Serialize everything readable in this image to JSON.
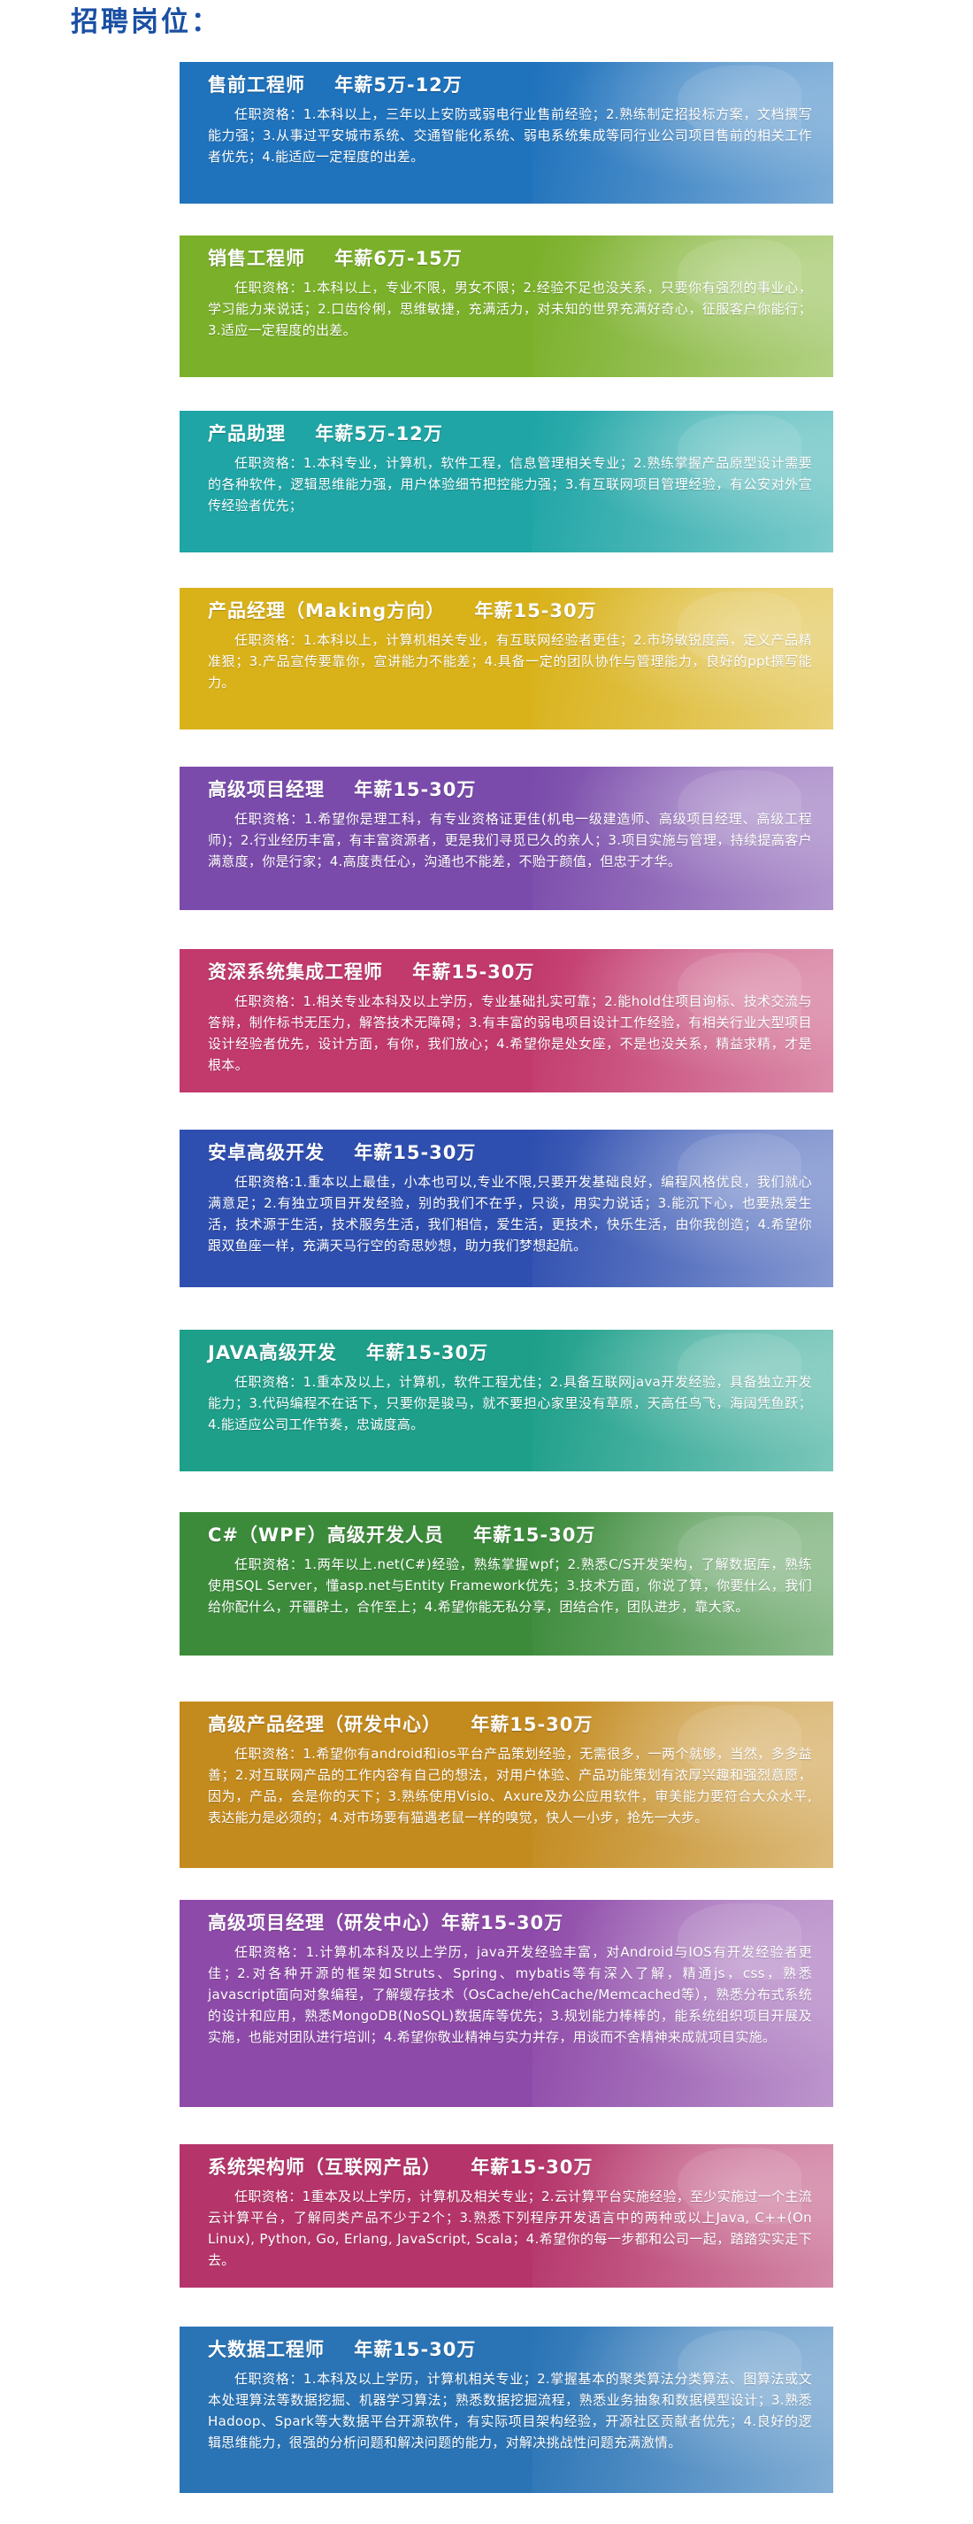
{
  "heading": "招聘岗位：",
  "jobs": [
    {
      "title": "售前工程师    年薪5万-12万",
      "desc": "任职资格：1.本科以上，三年以上安防或弱电行业售前经验；2.熟练制定招投标方案，文档撰写能力强；3.从事过平安城市系统、交通智能化系统、弱电系统集成等同行业公司项目售前的相关工作者优先；4.能适应一定程度的出差。",
      "color": "#1f72bc"
    },
    {
      "title": "销售工程师    年薪6万-15万",
      "desc": "任职资格：1.本科以上，专业不限，男女不限；2.经验不足也没关系，只要你有强烈的事业心，学习能力来说话；2.口齿伶俐，思维敏捷，充满活力，对未知的世界充满好奇心，征服客户你能行；3.适应一定程度的出差。",
      "color": "#7bb02a"
    },
    {
      "title": "产品助理    年薪5万-12万",
      "desc": "任职资格：1.本科专业，计算机，软件工程，信息管理相关专业；2.熟练掌握产品原型设计需要的各种软件，逻辑思维能力强，用户体验细节把控能力强；3.有互联网项目管理经验，有公安对外宣传经验者优先；",
      "color": "#1fa5a6"
    },
    {
      "title": "产品经理（Making方向）    年薪15-30万",
      "desc": "任职资格：1.本科以上，计算机相关专业，有互联网经验者更佳；2.市场敏锐度高，定义产品精准狠；3.产品宣传要靠你，宣讲能力不能差；4.具备一定的团队协作与管理能力，良好的ppt撰写能力。",
      "color": "#d9b21a"
    },
    {
      "title": "高级项目经理    年薪15-30万",
      "desc": "任职资格：1.希望你是理工科，有专业资格证更佳(机电一级建造师、高级项目经理、高级工程师)；2.行业经历丰富，有丰富资源者，更是我们寻觅已久的亲人；3.项目实施与管理，持续提高客户满意度，你是行家；4.高度责任心，沟通也不能差，不贻于颜值，但忠于才华。",
      "color": "#7a4bab"
    },
    {
      "title": "资深系统集成工程师    年薪15-30万",
      "desc": "任职资格：1.相关专业本科及以上学历，专业基础扎实可靠；2.能hold住项目询标、技术交流与答辩，制作标书无压力，解答技术无障碍；3.有丰富的弱电项目设计工作经验，有相关行业大型项目设计经验者优先，设计方面，有你，我们放心；4.希望你是处女座，不是也没关系，精益求精，才是根本。",
      "color": "#c2396c"
    },
    {
      "title": "安卓高级开发    年薪15-30万",
      "desc": "任职资格:1.重本以上最佳，小本也可以,专业不限,只要开发基础良好，编程风格优良，我们就心满意足；2.有独立项目开发经验，别的我们不在乎，只谈，用实力说话；3.能沉下心，也要热爱生活，技术源于生活，技术服务生活，我们相信，爱生活，更技术，快乐生活，由你我创造；4.希望你跟双鱼座一样，充满天马行空的奇思妙想，助力我们梦想起航。",
      "color": "#2f4fb0"
    },
    {
      "title": "JAVA高级开发    年薪15-30万",
      "desc": "任职资格：1.重本及以上，计算机，软件工程尤佳；2.具备互联网java开发经验，具备独立开发能力；3.代码编程不在话下，只要你是骏马，就不要担心家里没有草原，天高任鸟飞，海阔凭鱼跃；4.能适应公司工作节奏，忠诚度高。",
      "color": "#1d9f8a"
    },
    {
      "title": "C#（WPF）高级开发人员    年薪15-30万",
      "desc": "任职资格：1.两年以上.net(C#)经验，熟练掌握wpf；2.熟悉C/S开发架构，了解数据库，熟练使用SQL Server，懂asp.net与Entity Framework优先；3.技术方面，你说了算，你要什么，我们给你配什么，开疆辟土，合作至上；4.希望你能无私分享，团结合作，团队进步，靠大家。",
      "color": "#3c8b3b"
    },
    {
      "title": "高级产品经理（研发中心）    年薪15-30万",
      "desc": "任职资格：1.希望你有android和ios平台产品策划经验，无需很多，一两个就够，当然，多多益善；2.对互联网产品的工作内容有自己的想法，对用户体验、产品功能策划有浓厚兴趣和强烈意愿，因为，产品，会是你的天下；3.熟练使用Visio、Axure及办公应用软件，审美能力要符合大众水平,表达能力是必须的；4.对市场要有猫遇老鼠一样的嗅觉，快人一小步，抢先一大步。",
      "color": "#c38a1e"
    },
    {
      "title": "高级项目经理（研发中心）年薪15-30万",
      "desc": "任职资格：1.计算机本科及以上学历，java开发经验丰富，对Android与IOS有开发经验者更佳；2.对各种开源的框架如Struts、Spring、mybatis等有深入了解，精通js，css，熟悉javascript面向对象编程，了解缓存技术（OsCache/ehCache/Memcached等），熟悉分布式系统的设计和应用，熟悉MongoDB(NoSQL)数据库等优先；3.规划能力棒棒的，能系统组织项目开展及实施，也能对团队进行培训；4.希望你敬业精神与实力并存，用谈而不舍精神来成就项目实施。",
      "color": "#8e4aa9"
    },
    {
      "title": "系统架构师（互联网产品）    年薪15-30万",
      "desc": "任职资格：1重本及以上学历，计算机及相关专业；2.云计算平台实施经验，至少实施过一个主流云计算平台，了解同类产品不少于2个；3.熟悉下列程序开发语言中的两种或以上Java, C++(On Linux), Python, Go, Erlang, JavaScript, Scala；4.希望你的每一步都和公司一起，踏踏实实走下去。",
      "color": "#b5356a"
    },
    {
      "title": "大数据工程师    年薪15-30万",
      "desc": "任职资格：1.本科及以上学历，计算机相关专业；2.掌握基本的聚类算法分类算法、图算法或文本处理算法等数据挖掘、机器学习算法；熟悉数据挖掘流程，熟悉业务抽象和数据模型设计；3.熟悉Hadoop、Spark等大数据平台开源软件，有实际项目架构经验，开源社区贡献者优先；4.良好的逻辑思维能力，很强的分析问题和解决问题的能力，对解决挑战性问题充满激情。",
      "color": "#2a74b6"
    }
  ]
}
